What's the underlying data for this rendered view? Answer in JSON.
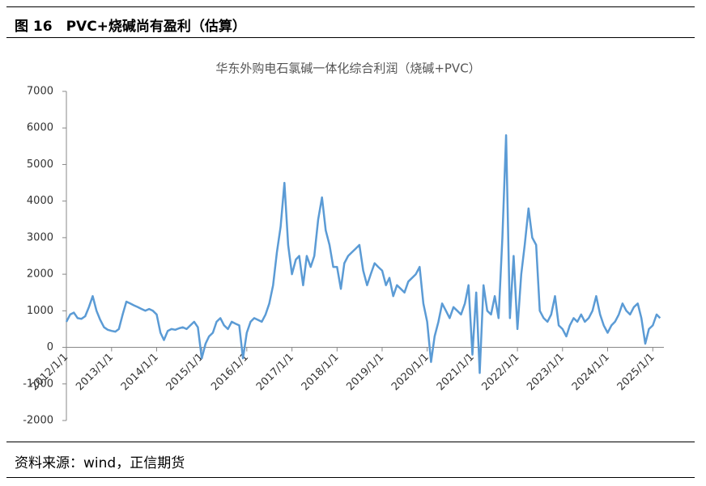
{
  "header": {
    "title": "图 16　PVC+烧碱尚有盈利（估算）"
  },
  "source": "资料来源：wind，正信期货",
  "chart_data": {
    "type": "line",
    "title": "华东外购电石氯碱一体化综合利润（烧碱+PVC）",
    "x": [
      "2012/1/1",
      "2012/2/1",
      "2012/3/1",
      "2012/4/1",
      "2012/5/1",
      "2012/6/1",
      "2012/7/1",
      "2012/8/1",
      "2012/9/1",
      "2012/10/1",
      "2012/11/1",
      "2012/12/1",
      "2013/1/1",
      "2013/2/1",
      "2013/3/1",
      "2013/4/1",
      "2013/5/1",
      "2013/6/1",
      "2013/7/1",
      "2013/8/1",
      "2013/9/1",
      "2013/10/1",
      "2013/11/1",
      "2013/12/1",
      "2014/1/1",
      "2014/2/1",
      "2014/3/1",
      "2014/4/1",
      "2014/5/1",
      "2014/6/1",
      "2014/7/1",
      "2014/8/1",
      "2014/9/1",
      "2014/10/1",
      "2014/11/1",
      "2014/12/1",
      "2015/1/1",
      "2015/2/1",
      "2015/3/1",
      "2015/4/1",
      "2015/5/1",
      "2015/6/1",
      "2015/7/1",
      "2015/8/1",
      "2015/9/1",
      "2015/10/1",
      "2015/11/1",
      "2015/12/1",
      "2016/1/1",
      "2016/2/1",
      "2016/3/1",
      "2016/4/1",
      "2016/5/1",
      "2016/6/1",
      "2016/7/1",
      "2016/8/1",
      "2016/9/1",
      "2016/10/1",
      "2016/11/1",
      "2016/12/1",
      "2017/1/1",
      "2017/2/1",
      "2017/3/1",
      "2017/4/1",
      "2017/5/1",
      "2017/6/1",
      "2017/7/1",
      "2017/8/1",
      "2017/9/1",
      "2017/10/1",
      "2017/11/1",
      "2017/12/1",
      "2018/1/1",
      "2018/2/1",
      "2018/3/1",
      "2018/4/1",
      "2018/5/1",
      "2018/6/1",
      "2018/7/1",
      "2018/8/1",
      "2018/9/1",
      "2018/10/1",
      "2018/11/1",
      "2018/12/1",
      "2019/1/1",
      "2019/2/1",
      "2019/3/1",
      "2019/4/1",
      "2019/5/1",
      "2019/6/1",
      "2019/7/1",
      "2019/8/1",
      "2019/9/1",
      "2019/10/1",
      "2019/11/1",
      "2019/12/1",
      "2020/1/1",
      "2020/2/1",
      "2020/3/1",
      "2020/4/1",
      "2020/5/1",
      "2020/6/1",
      "2020/7/1",
      "2020/8/1",
      "2020/9/1",
      "2020/10/1",
      "2020/11/1",
      "2020/12/1",
      "2021/1/1",
      "2021/2/1",
      "2021/3/1",
      "2021/4/1",
      "2021/5/1",
      "2021/6/1",
      "2021/7/1",
      "2021/8/1",
      "2021/9/1",
      "2021/10/1",
      "2021/11/1",
      "2021/12/1",
      "2022/1/1",
      "2022/2/1",
      "2022/3/1",
      "2022/4/1",
      "2022/5/1",
      "2022/6/1",
      "2022/7/1",
      "2022/8/1",
      "2022/9/1",
      "2022/10/1",
      "2022/11/1",
      "2022/12/1",
      "2023/1/1",
      "2023/2/1",
      "2023/3/1",
      "2023/4/1",
      "2023/5/1",
      "2023/6/1",
      "2023/7/1",
      "2023/8/1",
      "2023/9/1",
      "2023/10/1",
      "2023/11/1",
      "2023/12/1",
      "2024/1/1",
      "2024/2/1",
      "2024/3/1",
      "2024/4/1",
      "2024/5/1",
      "2024/6/1",
      "2024/7/1",
      "2024/8/1",
      "2024/9/1",
      "2024/10/1",
      "2024/11/1",
      "2024/12/1",
      "2025/1/1",
      "2025/2/1",
      "2025/3/1"
    ],
    "series": [
      {
        "name": "综合利润",
        "color": "#5b9bd5",
        "values": [
          700,
          900,
          950,
          800,
          780,
          850,
          1100,
          1400,
          1000,
          750,
          550,
          480,
          450,
          430,
          500,
          900,
          1250,
          1200,
          1150,
          1100,
          1050,
          1000,
          1050,
          1000,
          900,
          400,
          200,
          450,
          500,
          480,
          520,
          550,
          500,
          600,
          700,
          550,
          -300,
          100,
          300,
          400,
          700,
          800,
          600,
          500,
          700,
          650,
          600,
          -300,
          400,
          700,
          800,
          750,
          700,
          900,
          1200,
          1700,
          2600,
          3300,
          4500,
          2800,
          2000,
          2400,
          2500,
          1700,
          2500,
          2200,
          2500,
          3500,
          4100,
          3200,
          2800,
          2200,
          2200,
          1600,
          2300,
          2500,
          2600,
          2700,
          2800,
          2100,
          1700,
          2000,
          2300,
          2200,
          2100,
          1700,
          1900,
          1400,
          1700,
          1600,
          1500,
          1800,
          1900,
          2000,
          2200,
          1200,
          700,
          -400,
          300,
          700,
          1200,
          1000,
          800,
          1100,
          1000,
          900,
          1200,
          1700,
          -200,
          1500,
          -700,
          1700,
          1000,
          900,
          1400,
          800,
          3000,
          5800,
          800,
          2500,
          500,
          2000,
          2800,
          3800,
          3000,
          2800,
          1000,
          800,
          700,
          900,
          1400,
          600,
          500,
          300,
          600,
          800,
          700,
          900,
          700,
          800,
          1000,
          1400,
          900,
          600,
          400,
          600,
          700,
          900,
          1200,
          1000,
          900,
          1100,
          1200,
          800,
          100,
          500,
          600,
          900,
          800
        ]
      }
    ],
    "xlim": [
      "2012/1/1",
      "2025/4/1"
    ],
    "xticks": [
      "2012/1/1",
      "2013/1/1",
      "2014/1/1",
      "2015/1/1",
      "2016/1/1",
      "2017/1/1",
      "2018/1/1",
      "2019/1/1",
      "2020/1/1",
      "2021/1/1",
      "2022/1/1",
      "2023/1/1",
      "2024/1/1",
      "2025/1/1"
    ],
    "ylim": [
      -2000,
      7000
    ],
    "yticks": [
      -2000,
      -1000,
      0,
      1000,
      2000,
      3000,
      4000,
      5000,
      6000,
      7000
    ]
  }
}
